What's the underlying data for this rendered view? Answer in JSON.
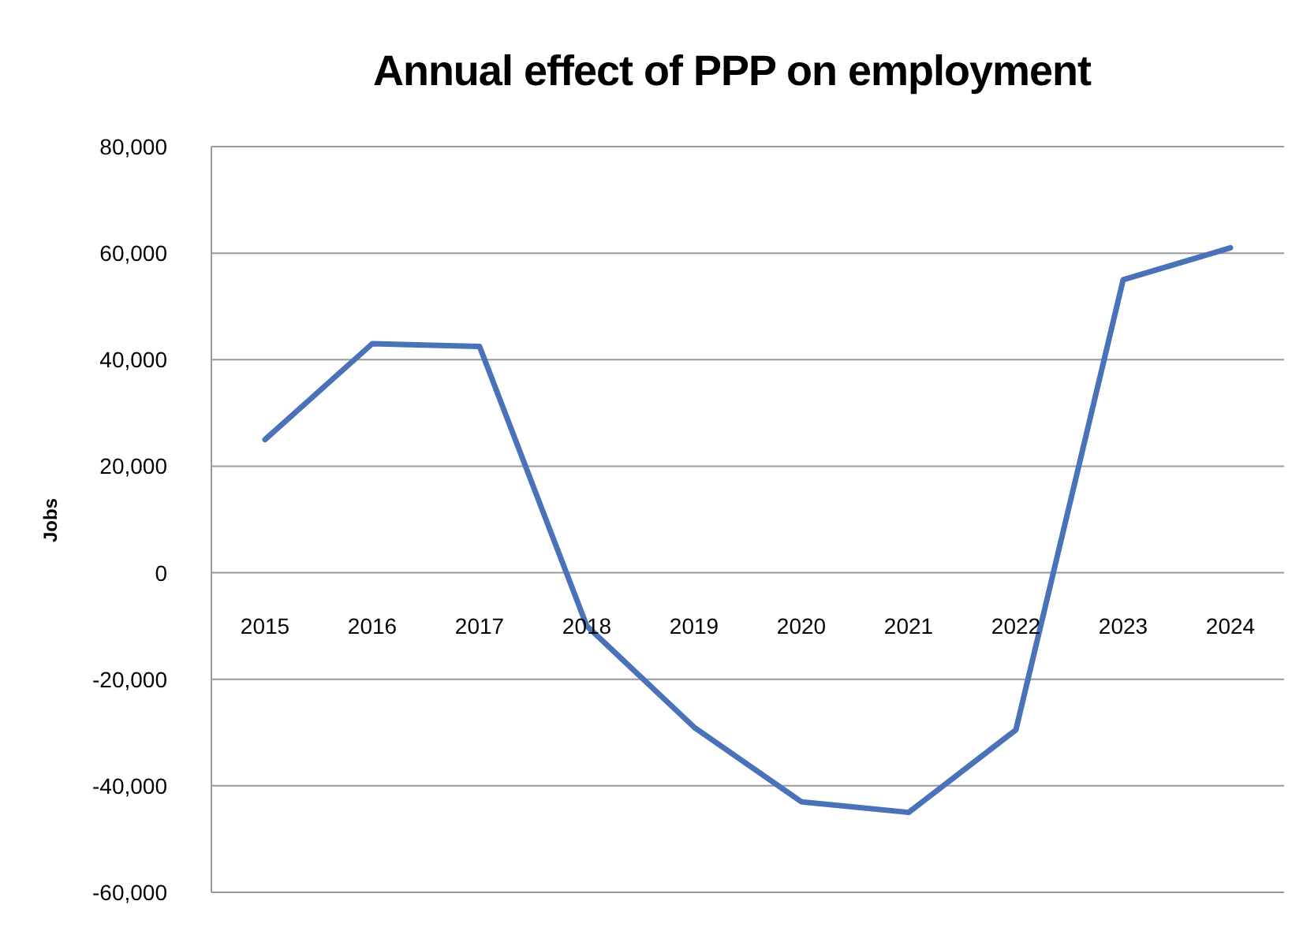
{
  "chart_data": {
    "type": "line",
    "title": "Annual effect of PPP on employment",
    "ylabel": "Jobs",
    "categories": [
      "2015",
      "2016",
      "2017",
      "2018",
      "2019",
      "2020",
      "2021",
      "2022",
      "2023",
      "2024"
    ],
    "series": [
      {
        "color": "#4a72b8",
        "values": [
          25000,
          43000,
          42500,
          -10000,
          -29000,
          -43000,
          -45000,
          -29500,
          55000,
          61000
        ]
      }
    ],
    "ylim": [
      -60000,
      80000
    ],
    "yticks": [
      {
        "value": -60000,
        "label": "-60,000"
      },
      {
        "value": -40000,
        "label": "-40,000"
      },
      {
        "value": -20000,
        "label": "-20,000"
      },
      0,
      {
        "value": 20000,
        "label": "20,000"
      },
      {
        "value": 40000,
        "label": "40,000"
      },
      {
        "value": 60000,
        "label": "60,000"
      },
      {
        "value": 80000,
        "label": "80,000"
      }
    ],
    "grid": "y",
    "legend": false,
    "marker": "none",
    "line_style": "solid"
  }
}
